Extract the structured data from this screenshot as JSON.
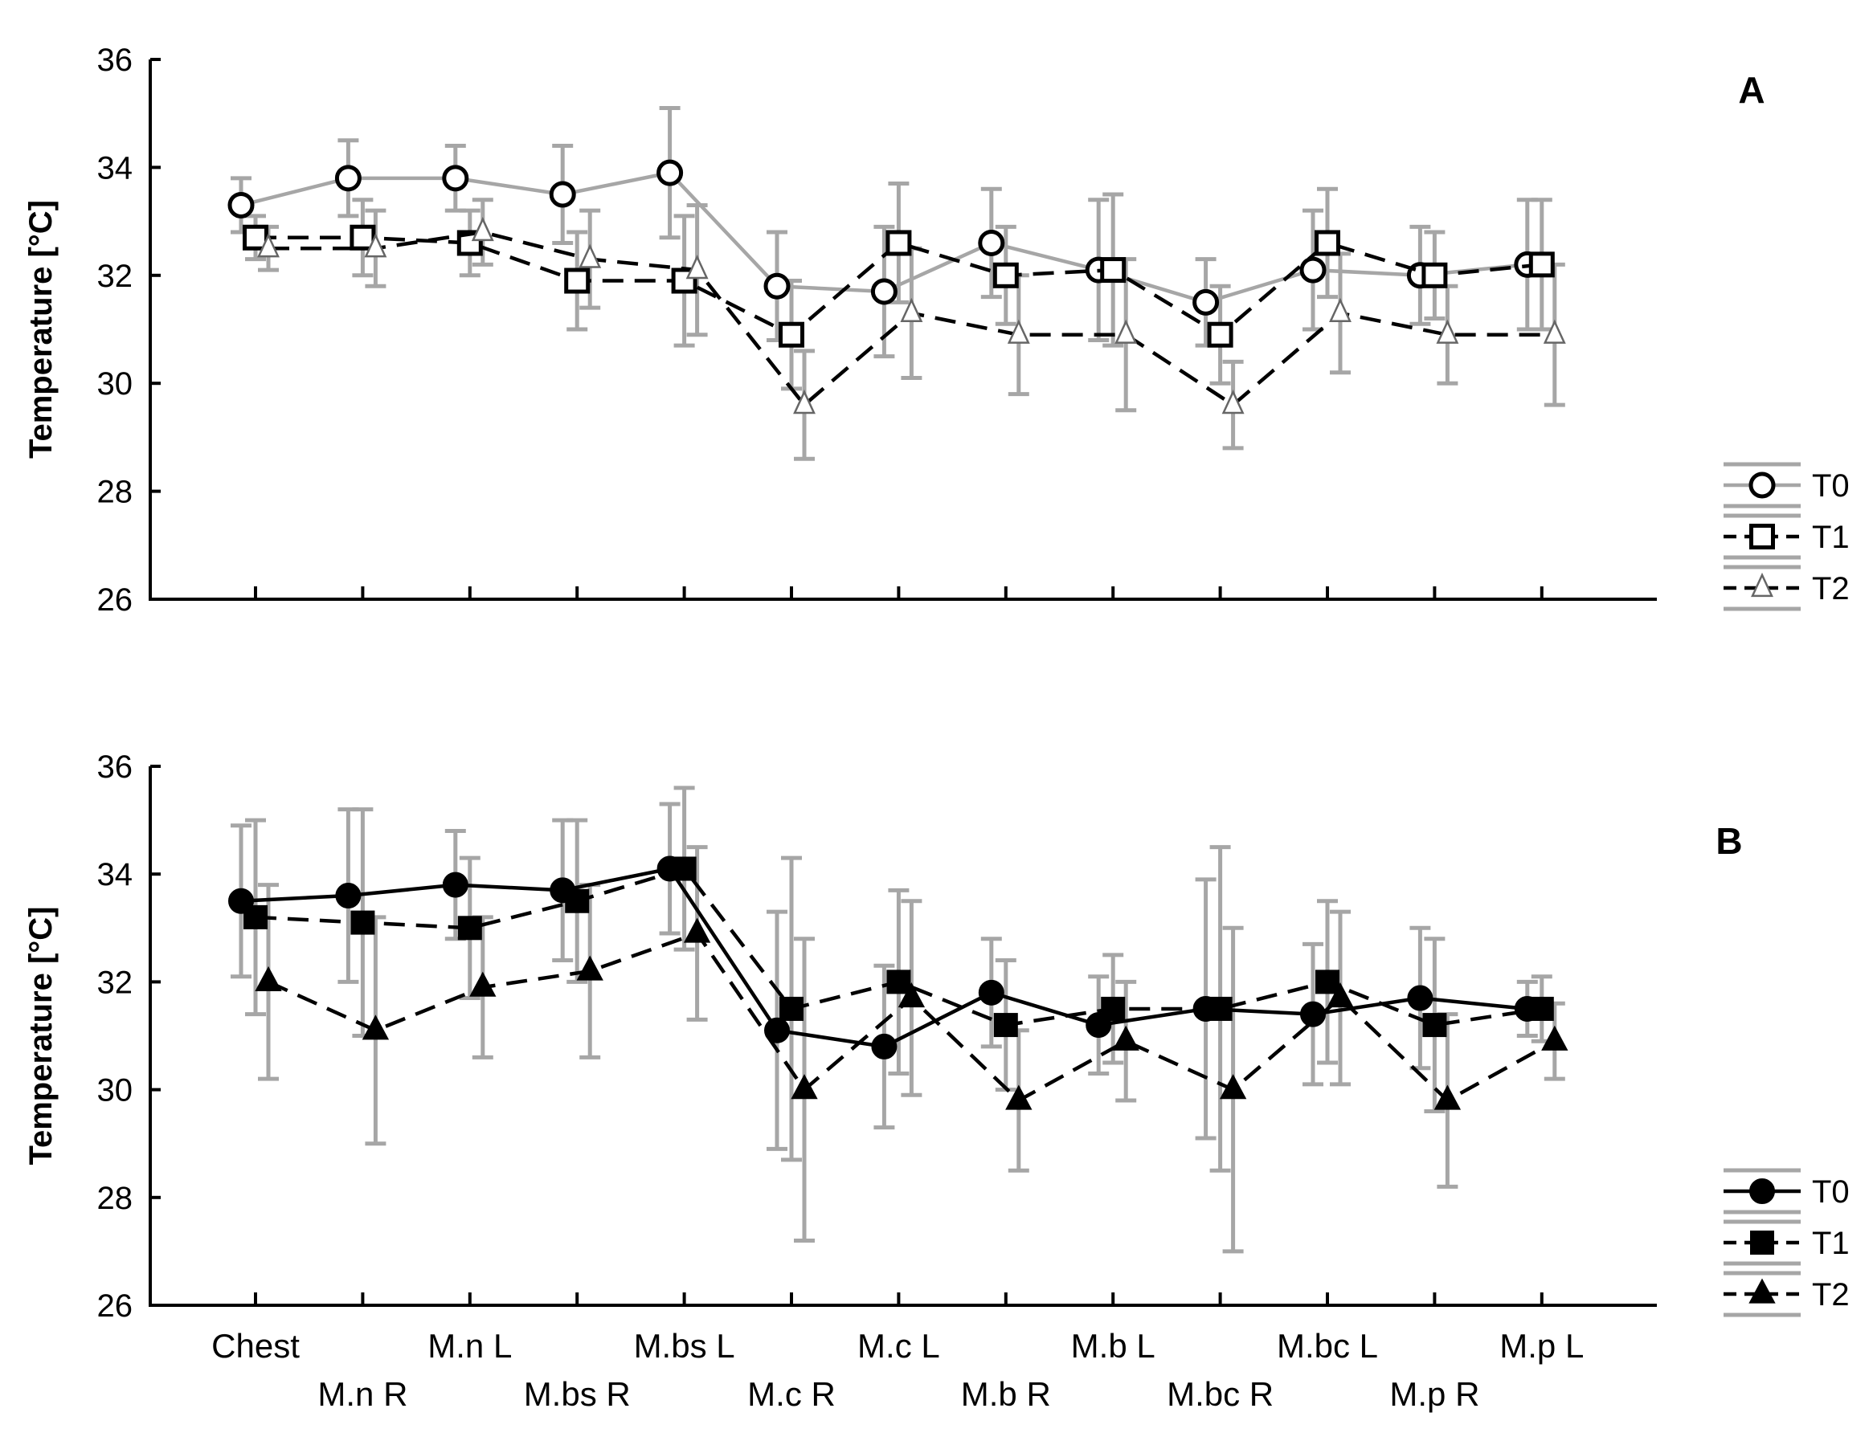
{
  "chart_data": [
    {
      "type": "line",
      "panel_label": "A",
      "ylabel": "Temperature [°C]",
      "ylim": [
        26,
        36
      ],
      "yticks": [
        "26",
        "28",
        "30",
        "32",
        "34",
        "36"
      ],
      "categories": [
        "Chest",
        "M.n R",
        "M.n L",
        "M.bs R",
        "M.bs L",
        "M.c R",
        "M.c L",
        "M.b R",
        "M.b L",
        "M.bc R",
        "M.bc L",
        "M.p R",
        "M.p L"
      ],
      "legend_position": "right-bottom",
      "series": [
        {
          "name": "T0",
          "marker": "circle-open",
          "line": "solid-gray",
          "values": [
            33.3,
            33.8,
            33.8,
            33.5,
            33.9,
            31.8,
            31.7,
            32.6,
            32.1,
            31.5,
            32.1,
            32.0,
            32.2
          ],
          "errors": [
            0.5,
            0.7,
            0.6,
            0.9,
            1.2,
            1.0,
            1.2,
            1.0,
            1.3,
            0.8,
            1.1,
            0.9,
            1.2
          ]
        },
        {
          "name": "T1",
          "marker": "square-open",
          "line": "dashed",
          "values": [
            32.7,
            32.7,
            32.6,
            31.9,
            31.9,
            30.9,
            32.6,
            32.0,
            32.1,
            30.9,
            32.6,
            32.0,
            32.2
          ],
          "errors": [
            0.4,
            0.7,
            0.6,
            0.9,
            1.2,
            1.0,
            1.1,
            0.9,
            1.4,
            0.9,
            1.0,
            0.8,
            1.2
          ]
        },
        {
          "name": "T2",
          "marker": "triangle-open",
          "line": "dashed",
          "values": [
            32.5,
            32.5,
            32.8,
            32.3,
            32.1,
            29.6,
            31.3,
            30.9,
            30.9,
            29.6,
            31.3,
            30.9,
            30.9
          ],
          "errors": [
            0.4,
            0.7,
            0.6,
            0.9,
            1.2,
            1.0,
            1.2,
            1.1,
            1.4,
            0.8,
            1.1,
            0.9,
            1.3
          ]
        }
      ]
    },
    {
      "type": "line",
      "panel_label": "B",
      "ylabel": "Temperature [°C]",
      "ylim": [
        26,
        36
      ],
      "yticks": [
        "26",
        "28",
        "30",
        "32",
        "34",
        "36"
      ],
      "categories": [
        "Chest",
        "M.n R",
        "M.n L",
        "M.bs R",
        "M.bs L",
        "M.c R",
        "M.c L",
        "M.b R",
        "M.b L",
        "M.bc R",
        "M.bc L",
        "M.p R",
        "M.p L"
      ],
      "legend_position": "right-bottom",
      "series": [
        {
          "name": "T0",
          "marker": "circle-filled",
          "line": "solid",
          "values": [
            33.5,
            33.6,
            33.8,
            33.7,
            34.1,
            31.1,
            30.8,
            31.8,
            31.2,
            31.5,
            31.4,
            31.7,
            31.5
          ],
          "errors": [
            1.4,
            1.6,
            1.0,
            1.3,
            1.2,
            2.2,
            1.5,
            1.0,
            0.9,
            2.4,
            1.3,
            1.3,
            0.5
          ]
        },
        {
          "name": "T1",
          "marker": "square-filled",
          "line": "dashed",
          "values": [
            33.2,
            33.1,
            33.0,
            33.5,
            34.1,
            31.5,
            32.0,
            31.2,
            31.5,
            31.5,
            32.0,
            31.2,
            31.5
          ],
          "errors": [
            1.8,
            2.1,
            1.3,
            1.5,
            1.5,
            2.8,
            1.7,
            1.2,
            1.0,
            3.0,
            1.5,
            1.6,
            0.6
          ]
        },
        {
          "name": "T2",
          "marker": "triangle-filled",
          "line": "dashed",
          "values": [
            32.0,
            31.1,
            31.9,
            32.2,
            32.9,
            30.0,
            31.7,
            29.8,
            30.9,
            30.0,
            31.7,
            29.8,
            30.9
          ],
          "errors": [
            1.8,
            2.1,
            1.3,
            1.6,
            1.6,
            2.8,
            1.8,
            1.3,
            1.1,
            3.0,
            1.6,
            1.6,
            0.7
          ]
        }
      ]
    }
  ]
}
